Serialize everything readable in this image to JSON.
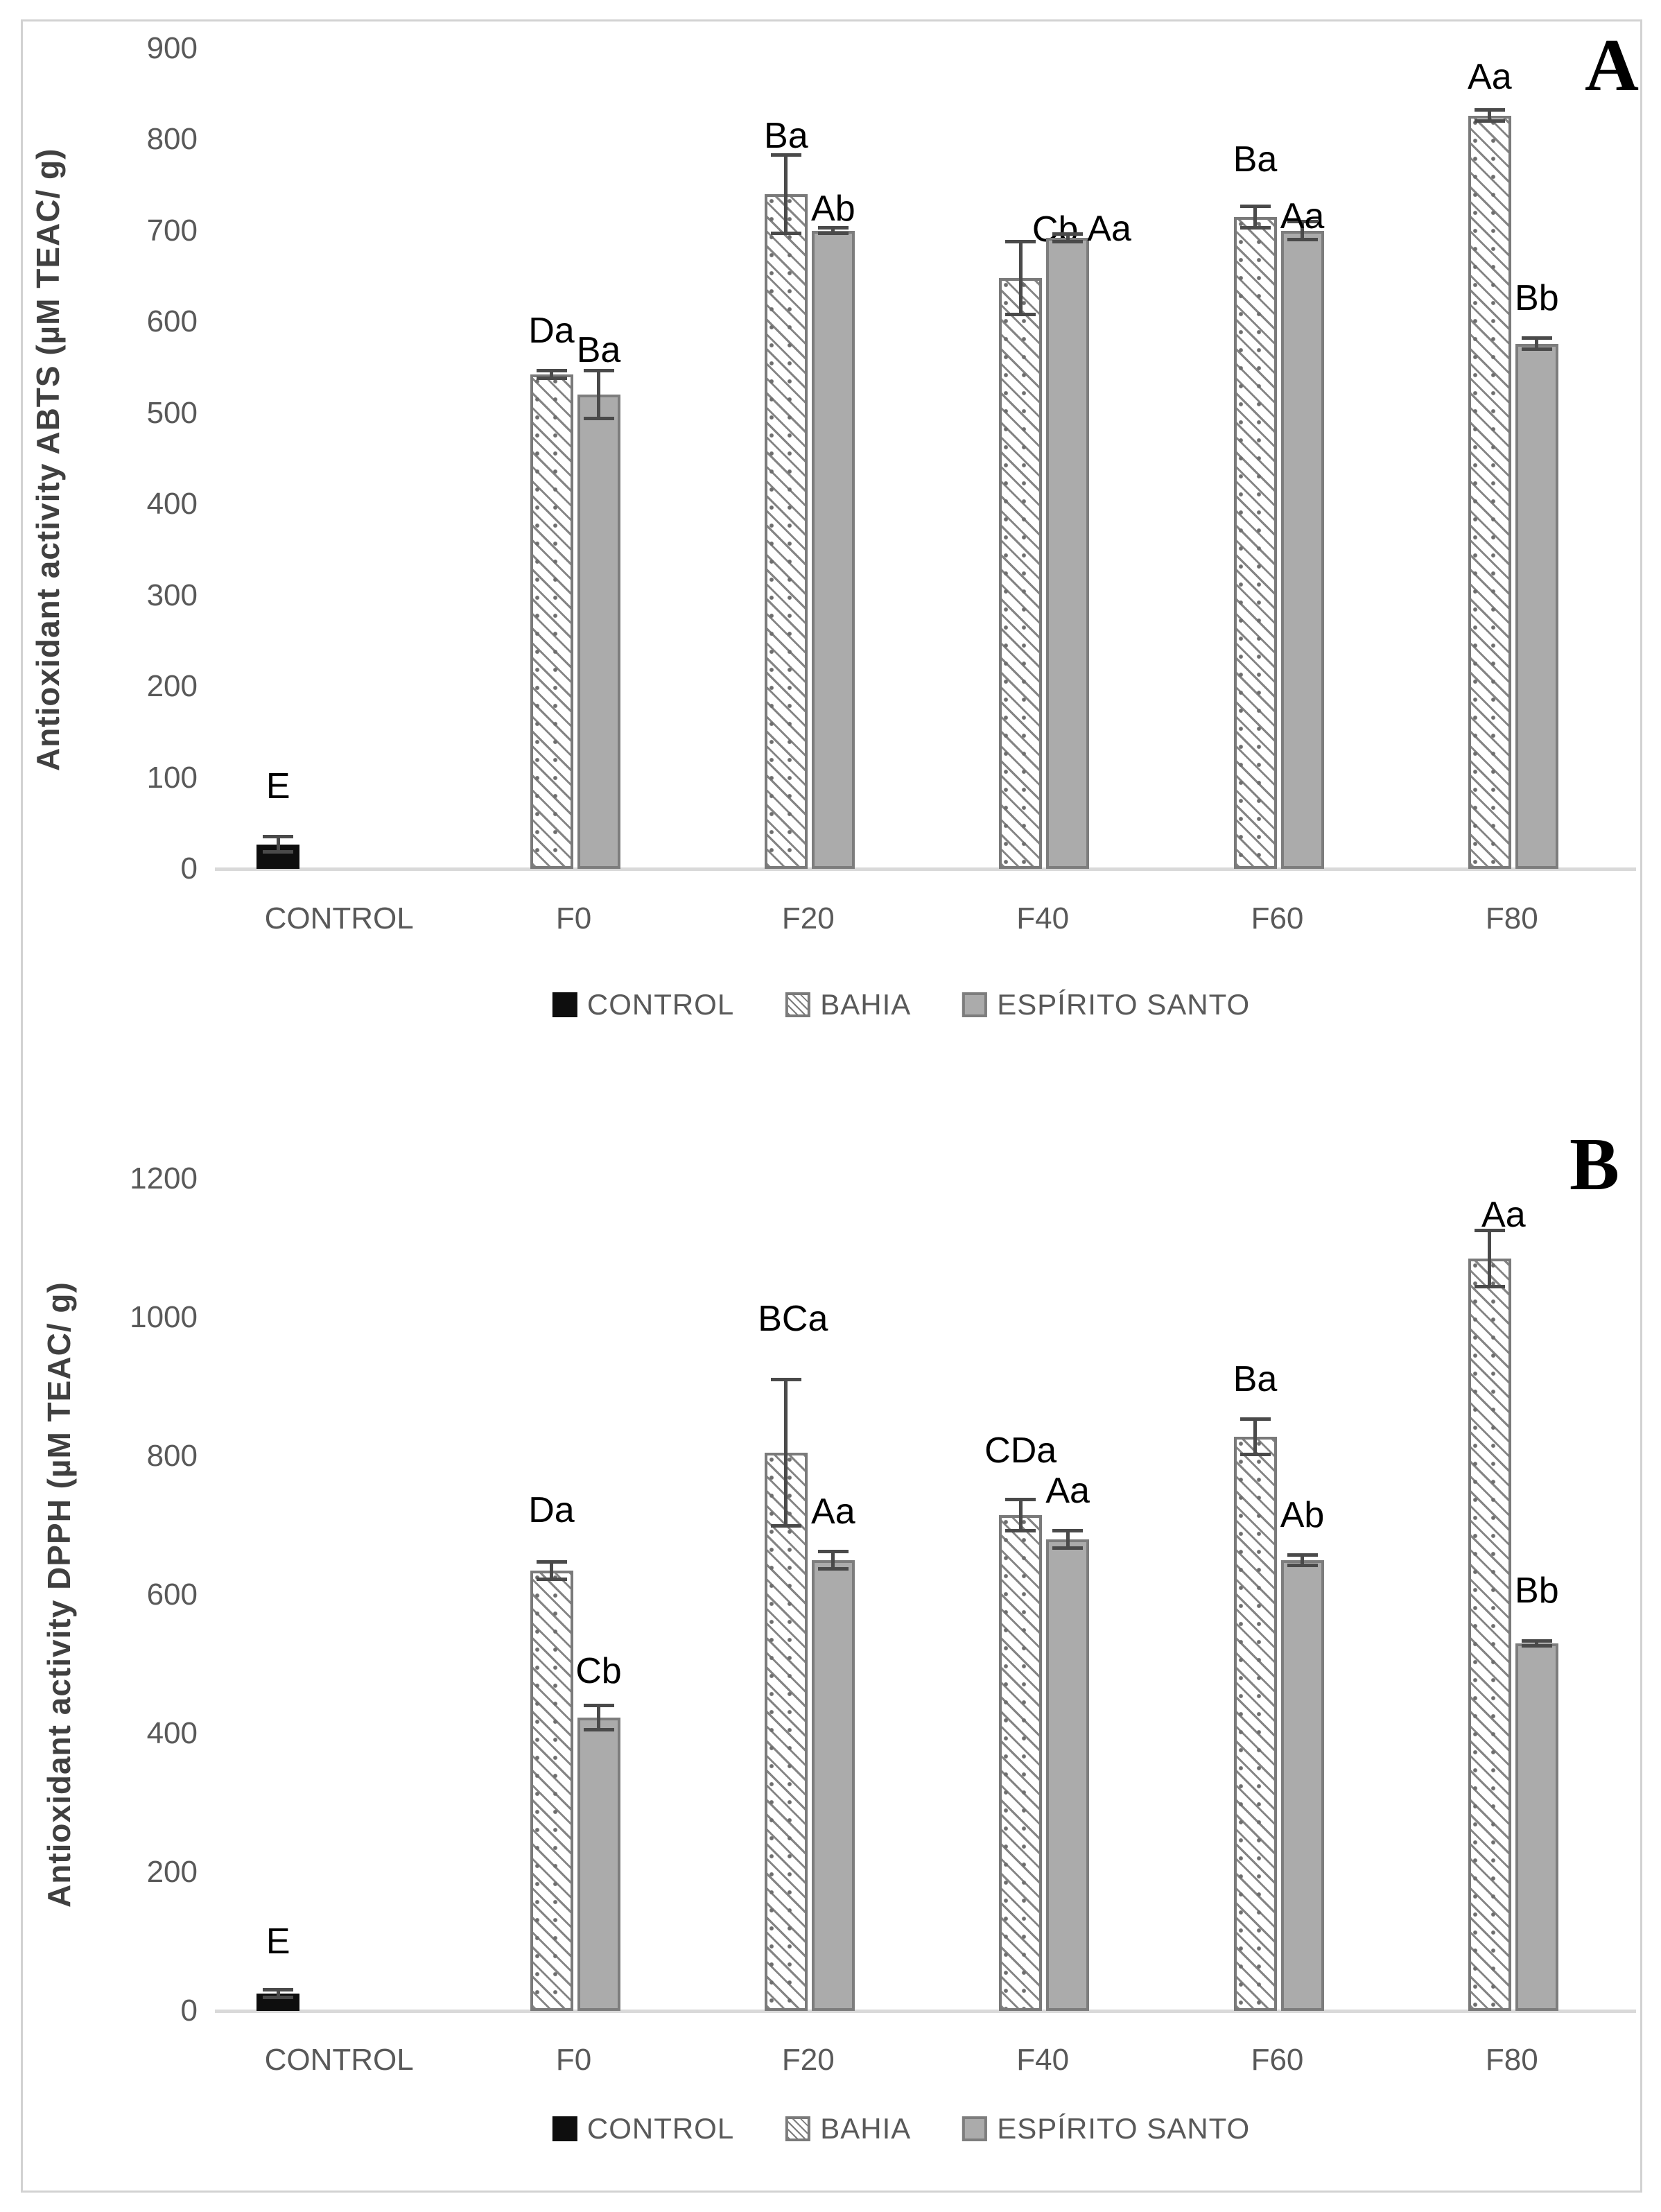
{
  "figure": {
    "background": "#ffffff",
    "frame_color": "#d2d2d2",
    "text_color": "#595959",
    "annotation_color": "#000000",
    "bar_gray_fill": "#ababab",
    "bar_outline": "#7d7d7d",
    "bar_black_fill": "#0e0e0e",
    "error_bar_color": "#4a4a4a"
  },
  "legend": {
    "items": [
      {
        "label": "CONTROL",
        "swatch": "black"
      },
      {
        "label": "BAHIA",
        "swatch": "hatch"
      },
      {
        "label": "ESPÍRITO SANTO",
        "swatch": "gray"
      }
    ]
  },
  "chart_data": [
    {
      "id": "A",
      "type": "bar",
      "panel_label": "A",
      "title": "",
      "xlabel": "",
      "ylabel": "Antioxidant activity ABTS (µM TEAC/ g)",
      "ylim": [
        0,
        900
      ],
      "yticks": [
        0,
        100,
        200,
        300,
        400,
        500,
        600,
        700,
        800,
        900
      ],
      "grid": "off",
      "legend_position": "bottom",
      "categories": [
        "CONTROL",
        "F0",
        "F20",
        "F40",
        "F60",
        "F80"
      ],
      "series": [
        {
          "name": "CONTROL",
          "swatch": "black",
          "values": [
            27,
            null,
            null,
            null,
            null,
            null
          ],
          "errors": [
            10,
            null,
            null,
            null,
            null,
            null
          ],
          "labels": [
            "E",
            null,
            null,
            null,
            null,
            null
          ],
          "label_dx": [
            0,
            0,
            0,
            0,
            0,
            0
          ],
          "label_dy": [
            -15,
            0,
            0,
            0,
            0,
            0
          ]
        },
        {
          "name": "BAHIA",
          "swatch": "hatch",
          "values": [
            null,
            542,
            740,
            648,
            715,
            826
          ],
          "errors": [
            null,
            6,
            45,
            42,
            14,
            8
          ],
          "labels": [
            null,
            "Da",
            "Ba",
            "Cb",
            "Ba",
            "Aa"
          ],
          "label_dx": [
            0,
            0,
            0,
            50,
            0,
            0
          ],
          "label_dy": [
            0,
            0,
            30,
            40,
            -10,
            10
          ]
        },
        {
          "name": "ESPÍRITO SANTO",
          "swatch": "gray",
          "values": [
            null,
            520,
            700,
            692,
            700,
            576
          ],
          "errors": [
            null,
            28,
            5,
            6,
            12,
            8
          ],
          "labels": [
            null,
            "Ba",
            "Ab",
            "Aa",
            "Aa",
            "Bb"
          ],
          "label_dx": [
            0,
            0,
            0,
            60,
            0,
            0
          ],
          "label_dy": [
            0,
            28,
            30,
            50,
            50,
            0
          ]
        }
      ]
    },
    {
      "id": "B",
      "type": "bar",
      "panel_label": "B",
      "title": "",
      "xlabel": "",
      "ylabel": "Antioxidant activity DPPH (µM TEAC/ g)",
      "ylim": [
        0,
        1200
      ],
      "yticks": [
        0,
        200,
        400,
        600,
        800,
        1000,
        1200
      ],
      "grid": "off",
      "legend_position": "bottom",
      "categories": [
        "CONTROL",
        "F0",
        "F20",
        "F40",
        "F60",
        "F80"
      ],
      "series": [
        {
          "name": "CONTROL",
          "swatch": "black",
          "values": [
            25,
            null,
            null,
            null,
            null,
            null
          ],
          "errors": [
            8,
            null,
            null,
            null,
            null,
            null
          ],
          "labels": [
            "E",
            null,
            null,
            null,
            null,
            null
          ],
          "label_dx": [
            0,
            0,
            0,
            0,
            0,
            0
          ],
          "label_dy": [
            -12,
            0,
            0,
            0,
            0,
            0
          ]
        },
        {
          "name": "BAHIA",
          "swatch": "hatch",
          "values": [
            null,
            635,
            805,
            715,
            828,
            1085
          ],
          "errors": [
            null,
            15,
            108,
            25,
            28,
            43
          ],
          "labels": [
            null,
            "Da",
            "BCa",
            "CDa",
            "Ba",
            "Aa"
          ],
          "label_dx": [
            0,
            0,
            10,
            0,
            0,
            20
          ],
          "label_dy": [
            0,
            -17,
            -30,
            -13,
            0,
            35
          ]
        },
        {
          "name": "ESPÍRITO SANTO",
          "swatch": "gray",
          "values": [
            null,
            423,
            650,
            680,
            650,
            530
          ],
          "errors": [
            null,
            20,
            15,
            15,
            10,
            6
          ],
          "labels": [
            null,
            "Cb",
            "Aa",
            "Aa",
            "Ab",
            "Bb"
          ],
          "label_dx": [
            0,
            0,
            0,
            0,
            0,
            0
          ],
          "label_dy": [
            0,
            8,
            0,
            0,
            0,
            -15
          ]
        }
      ]
    }
  ]
}
